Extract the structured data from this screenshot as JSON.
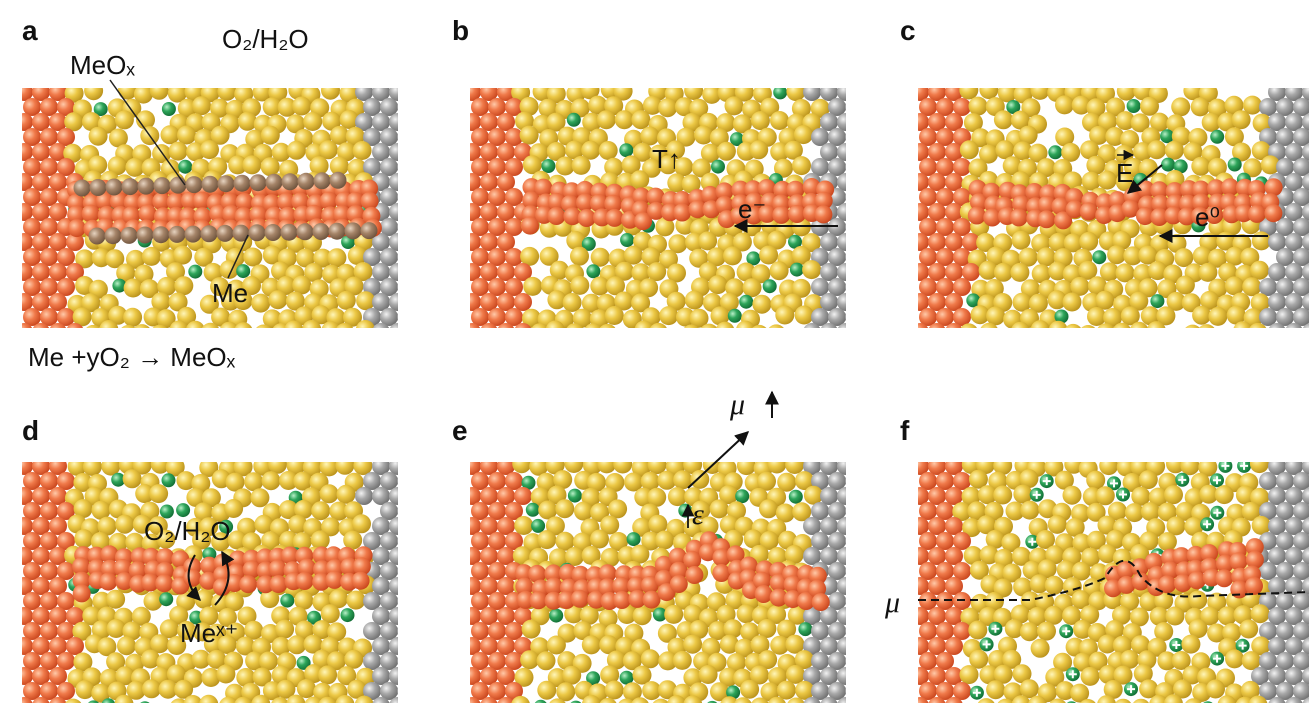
{
  "panels": [
    {
      "label": "a",
      "gas": "O₂/H₂O",
      "oxide": "MeOₓ",
      "metal": "Me",
      "equation": "Me +yO₂ → MeOₓ"
    },
    {
      "label": "b",
      "temperature": "T↑",
      "electron": "e⁻"
    },
    {
      "label": "c",
      "field": "E",
      "electron": "e⁰"
    },
    {
      "label": "d",
      "gas": "O₂/H₂O",
      "ion": "Meˣ⁺"
    },
    {
      "label": "e",
      "potential": "μ",
      "strain": "ε"
    },
    {
      "label": "f",
      "potential": "μ"
    }
  ]
}
